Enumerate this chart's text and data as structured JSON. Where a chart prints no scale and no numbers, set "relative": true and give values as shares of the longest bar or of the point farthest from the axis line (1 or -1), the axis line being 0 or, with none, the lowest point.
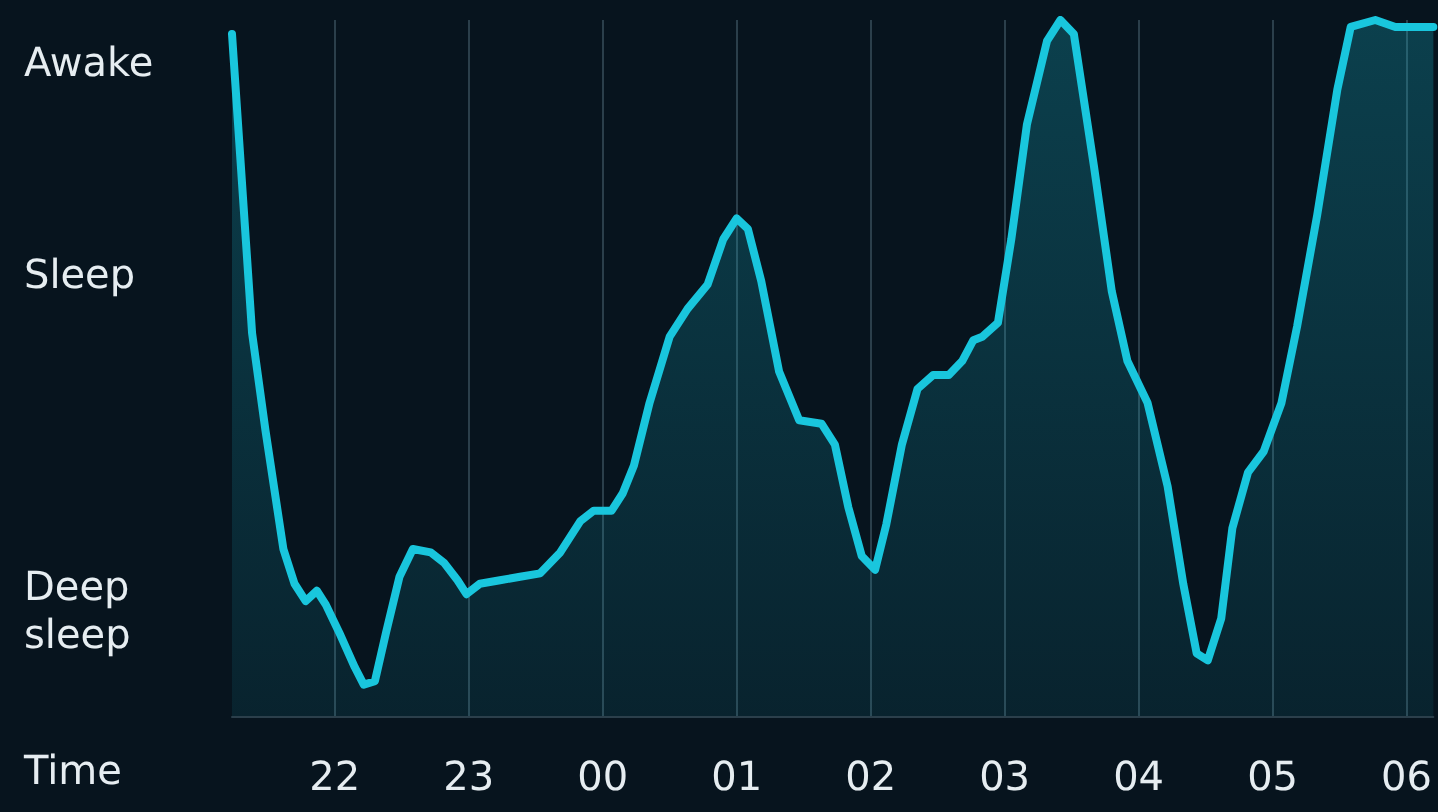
{
  "chart_data": {
    "type": "area",
    "xlabel": "Time",
    "color": "#19c6dd",
    "relative": true,
    "annotations": [
      "Awake",
      "Sleep",
      "Deep sleep"
    ],
    "x": [
      "2000-01-01T21:14",
      "2000-01-01T21:23",
      "2000-01-01T21:29",
      "2000-01-01T21:37",
      "2000-01-01T21:42",
      "2000-01-01T21:47",
      "2000-01-01T21:52",
      "2000-01-01T21:56",
      "2000-01-01T22:02",
      "2000-01-01T22:09",
      "2000-01-01T22:13",
      "2000-01-01T22:18",
      "2000-01-01T22:23",
      "2000-01-01T22:29",
      "2000-01-01T22:35",
      "2000-01-01T22:43",
      "2000-01-01T22:49",
      "2000-01-01T22:55",
      "2000-01-01T22:59",
      "2000-01-01T23:05",
      "2000-01-01T23:14",
      "2000-01-01T23:23",
      "2000-01-01T23:32",
      "2000-01-01T23:41",
      "2000-01-01T23:50",
      "2000-01-01T23:56",
      "2000-01-02T00:04",
      "2000-01-02T00:09",
      "2000-01-02T00:14",
      "2000-01-02T00:21",
      "2000-01-02T00:30",
      "2000-01-02T00:38",
      "2000-01-02T00:47",
      "2000-01-02T00:54",
      "2000-01-02T01:00",
      "2000-01-02T01:05",
      "2000-01-02T01:11",
      "2000-01-02T01:19",
      "2000-01-02T01:28",
      "2000-01-02T01:38",
      "2000-01-02T01:44",
      "2000-01-02T01:50",
      "2000-01-02T01:56",
      "2000-01-02T02:02",
      "2000-01-02T02:07",
      "2000-01-02T02:14",
      "2000-01-02T02:21",
      "2000-01-02T02:28",
      "2000-01-02T02:35",
      "2000-01-02T02:41",
      "2000-01-02T02:46",
      "2000-01-02T02:50",
      "2000-01-02T02:57",
      "2000-01-02T03:03",
      "2000-01-02T03:10",
      "2000-01-02T03:19",
      "2000-01-02T03:25",
      "2000-01-02T03:31",
      "2000-01-02T03:40",
      "2000-01-02T03:48",
      "2000-01-02T03:55",
      "2000-01-02T04:04",
      "2000-01-02T04:13",
      "2000-01-02T04:20",
      "2000-01-02T04:26",
      "2000-01-02T04:31",
      "2000-01-02T04:37",
      "2000-01-02T04:42",
      "2000-01-02T04:49",
      "2000-01-02T04:56",
      "2000-01-02T05:04",
      "2000-01-02T05:11",
      "2000-01-02T05:20",
      "2000-01-02T05:29",
      "2000-01-02T05:35",
      "2000-01-02T05:46",
      "2000-01-02T05:55",
      "2000-01-02T06:12"
    ],
    "values": [
      0.98,
      0.55,
      0.41,
      0.24,
      0.19,
      0.165,
      0.18,
      0.16,
      0.12,
      0.07,
      0.045,
      0.05,
      0.12,
      0.2,
      0.24,
      0.235,
      0.22,
      0.195,
      0.175,
      0.19,
      0.195,
      0.2,
      0.205,
      0.235,
      0.28,
      0.295,
      0.295,
      0.32,
      0.36,
      0.45,
      0.545,
      0.585,
      0.62,
      0.685,
      0.715,
      0.7,
      0.625,
      0.495,
      0.425,
      0.42,
      0.39,
      0.3,
      0.23,
      0.21,
      0.275,
      0.39,
      0.47,
      0.49,
      0.49,
      0.51,
      0.54,
      0.545,
      0.565,
      0.685,
      0.85,
      0.97,
      1.0,
      0.98,
      0.79,
      0.61,
      0.51,
      0.45,
      0.33,
      0.19,
      0.09,
      0.08,
      0.14,
      0.27,
      0.35,
      0.38,
      0.45,
      0.56,
      0.72,
      0.9,
      0.99,
      1.0,
      0.99,
      0.99
    ],
    "xlim": [
      "2000-01-01T21:14",
      "2000-01-02T06:12"
    ],
    "xticks": [
      {
        "value": "2000-01-01T22:00",
        "label": "22"
      },
      {
        "value": "2000-01-01T23:00",
        "label": "23"
      },
      {
        "value": "2000-01-02T00:00",
        "label": "00"
      },
      {
        "value": "2000-01-02T01:00",
        "label": "01"
      },
      {
        "value": "2000-01-02T02:00",
        "label": "02"
      },
      {
        "value": "2000-01-02T03:00",
        "label": "03"
      },
      {
        "value": "2000-01-02T04:00",
        "label": "04"
      },
      {
        "value": "2000-01-02T05:00",
        "label": "05"
      },
      {
        "value": "2000-01-02T06:00",
        "label": "06"
      }
    ],
    "grid": "x",
    "marker": "none",
    "line_style": "solid"
  }
}
